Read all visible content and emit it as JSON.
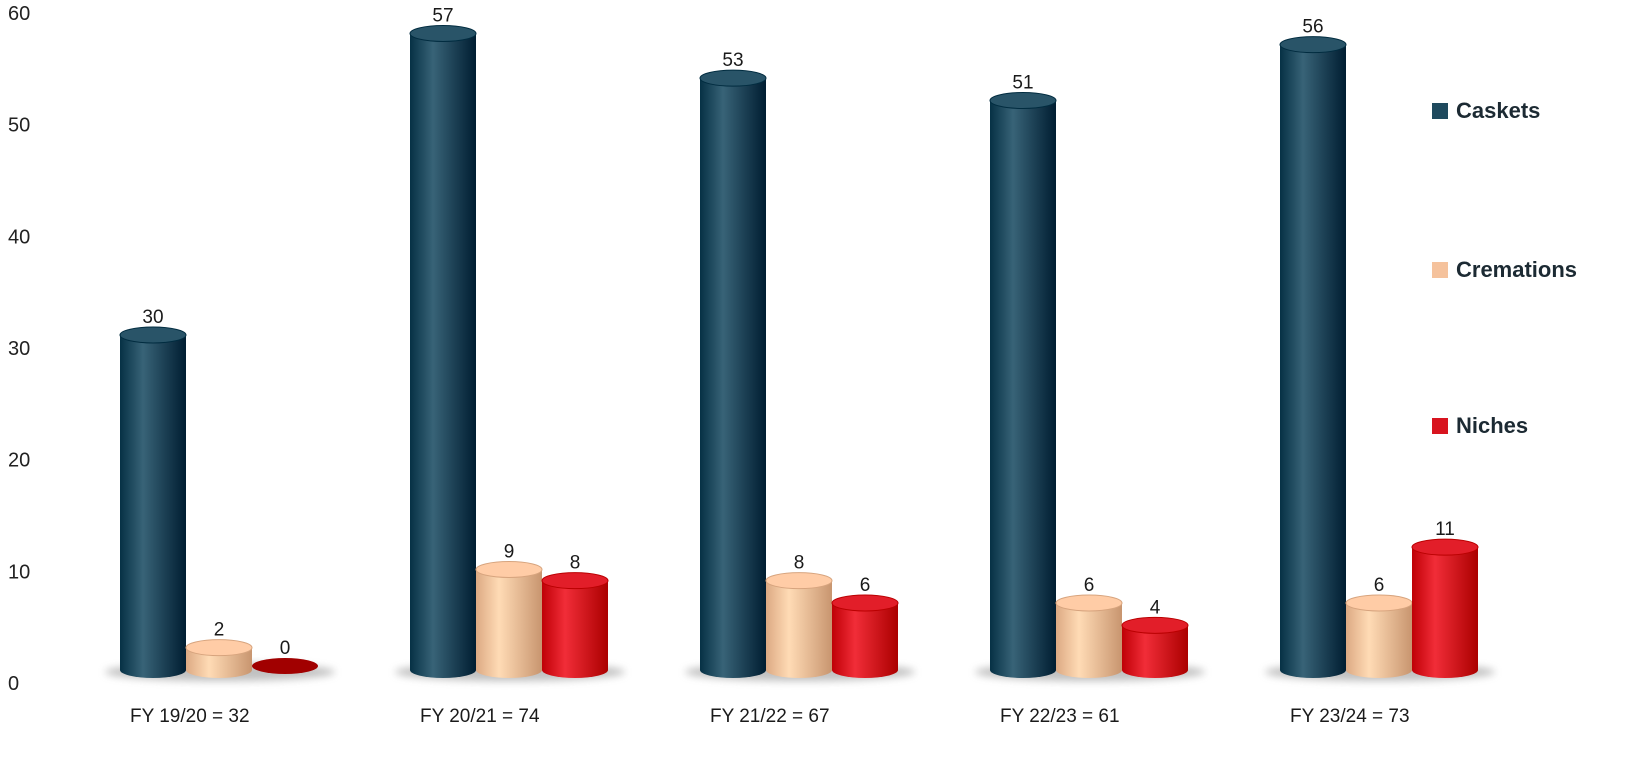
{
  "chart_data": {
    "type": "bar",
    "style": "3d-cylinder",
    "categories": [
      "FY  19/20 = 32",
      "FY  20/21 = 74",
      "FY  21/22 = 67",
      "FY  22/23 = 61",
      "FY  23/24 = 73"
    ],
    "series": [
      {
        "name": "Caskets",
        "values": [
          30,
          57,
          53,
          51,
          56
        ],
        "color": "#1f4a5e"
      },
      {
        "name": "Cremations",
        "values": [
          2,
          9,
          8,
          6,
          6
        ],
        "color": "#f5c29c"
      },
      {
        "name": "Niches",
        "values": [
          0,
          8,
          6,
          4,
          11
        ],
        "color": "#d8141f"
      }
    ],
    "data_labels": [
      [
        "30",
        "57",
        "53",
        "51",
        "56"
      ],
      [
        "2",
        "9",
        "8",
        "6",
        "6"
      ],
      [
        "0",
        "8",
        "6",
        "4",
        "11"
      ]
    ],
    "ylim": [
      0,
      60
    ],
    "yticks": [
      "0",
      "10",
      "20",
      "30",
      "40",
      "50",
      "60"
    ],
    "title": "",
    "xlabel": "",
    "ylabel": "",
    "legend": "right",
    "grid": false
  }
}
